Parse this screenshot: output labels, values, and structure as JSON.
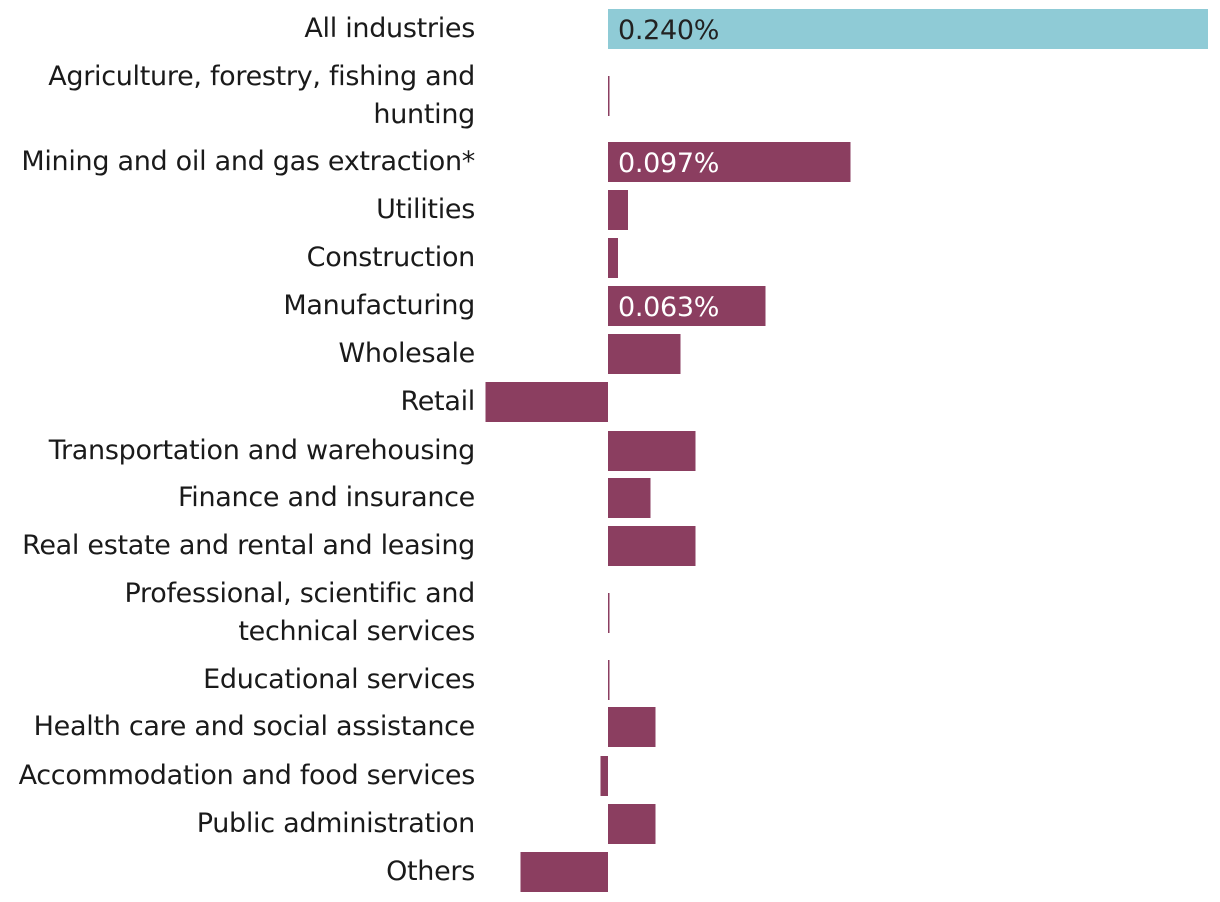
{
  "chart_data": {
    "type": "bar",
    "orientation": "horizontal",
    "categories": [
      "All industries",
      "Agriculture, forestry, fishing and hunting",
      "Mining and oil and gas extraction*",
      "Utilities",
      "Construction",
      "Manufacturing",
      "Wholesale",
      "Retail",
      "Transportation and warehousing",
      "Finance and insurance",
      "Real estate and rental and leasing",
      "Professional, scientific and technical services",
      "Educational services",
      "Health care and social assistance",
      "Accommodation and food services",
      "Public administration",
      "Others"
    ],
    "values": [
      0.24,
      0.0005,
      0.097,
      0.008,
      0.004,
      0.063,
      0.029,
      -0.049,
      0.035,
      0.017,
      0.035,
      0.0005,
      0.0005,
      0.019,
      -0.003,
      0.019,
      -0.035
    ],
    "data_labels": [
      "0.240%",
      "",
      "0.097%",
      "",
      "",
      "0.063%",
      "",
      "",
      "",
      "",
      "",
      "",
      "",
      "",
      "",
      "",
      ""
    ],
    "colors": {
      "highlight": "#8fcbd6",
      "bar": "#8b3e60",
      "label_on_highlight": "#222222",
      "label_on_bar": "#ffffff"
    },
    "xlim": [
      -0.049,
      0.24
    ],
    "grid": false,
    "legend": "none",
    "title": "",
    "xlabel": "",
    "ylabel": ""
  }
}
